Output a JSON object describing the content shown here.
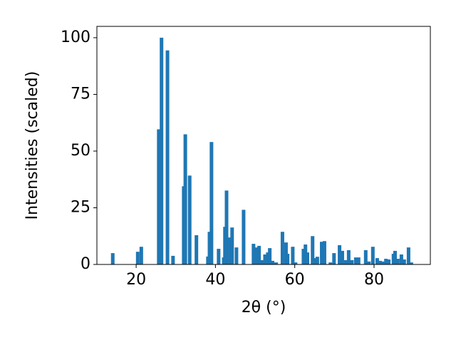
{
  "chart_data": {
    "type": "bar",
    "x_label": "2θ (°)",
    "y_label": "Intensities (scaled)",
    "x": [
      14.1,
      20.4,
      21.3,
      25.7,
      26.4,
      27.9,
      29.3,
      32.0,
      32.4,
      33.5,
      35.2,
      38.1,
      38.5,
      39.0,
      40.8,
      42.1,
      42.4,
      42.8,
      43.7,
      44.2,
      45.3,
      47.1,
      49.6,
      50.3,
      51.0,
      51.7,
      52.5,
      53.2,
      53.7,
      54.4,
      55.3,
      56.9,
      57.8,
      58.2,
      59.5,
      60.2,
      62.2,
      62.7,
      63.2,
      64.5,
      65.0,
      65.7,
      66.8,
      67.5,
      69.0,
      69.9,
      71.3,
      72.0,
      72.9,
      73.6,
      74.4,
      75.4,
      76.1,
      77.9,
      78.7,
      79.7,
      80.8,
      81.5,
      82.2,
      83.0,
      83.7,
      84.9,
      85.3,
      86.0,
      86.9,
      87.6,
      88.7,
      89.4
    ],
    "values": [
      5.0,
      5.6,
      7.8,
      59.6,
      100,
      94.4,
      3.8,
      34.5,
      57.4,
      39.2,
      12.9,
      3.5,
      14.4,
      54.0,
      6.9,
      3.1,
      16.6,
      32.6,
      11.9,
      16.3,
      7.5,
      24.1,
      9.1,
      7.5,
      8.2,
      1.9,
      4.4,
      5.3,
      7.2,
      1.6,
      0.9,
      14.4,
      9.7,
      4.7,
      7.8,
      0.9,
      6.9,
      8.8,
      5.3,
      12.5,
      2.8,
      3.4,
      10.0,
      10.3,
      0.9,
      5.0,
      8.5,
      6.0,
      1.9,
      6.3,
      1.9,
      3.1,
      3.1,
      6.3,
      1.3,
      7.8,
      2.8,
      1.6,
      1.3,
      2.5,
      2.2,
      4.7,
      6.0,
      2.5,
      4.4,
      2.2,
      7.5,
      0.9
    ],
    "color": "#1f77b4",
    "xlim": [
      10.1,
      94.2
    ],
    "xticks": [
      20,
      40,
      60,
      80
    ],
    "ylim": [
      0,
      105
    ],
    "yticks": [
      0,
      25,
      50,
      75,
      100
    ]
  }
}
